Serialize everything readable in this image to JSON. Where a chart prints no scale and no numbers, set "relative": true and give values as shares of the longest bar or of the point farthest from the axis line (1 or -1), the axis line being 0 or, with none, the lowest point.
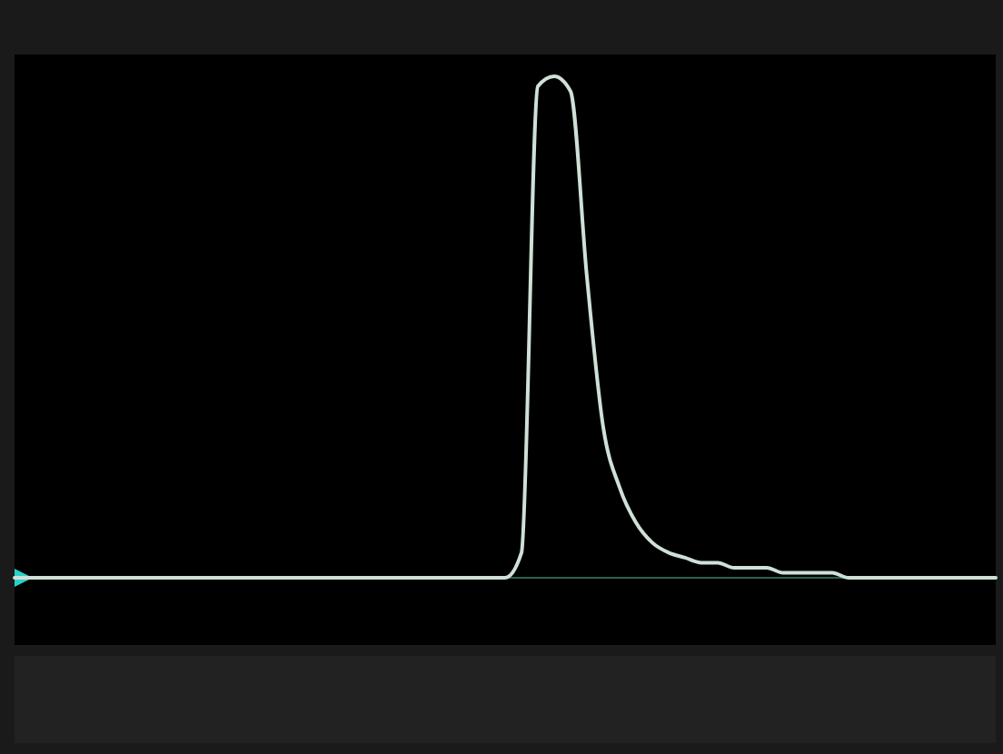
{
  "chart_data": {
    "type": "line",
    "relative": true,
    "color": "#cfe0d6",
    "categories": [
      null,
      null,
      null,
      null,
      null,
      null,
      null,
      null,
      null,
      null,
      null,
      null,
      null,
      null,
      null,
      null,
      null,
      null,
      null,
      null,
      null,
      null,
      null,
      null,
      null,
      null,
      null,
      null,
      null,
      null,
      null,
      null,
      null,
      null,
      null,
      null,
      null,
      null,
      null,
      null,
      null,
      null,
      null,
      null,
      null,
      null,
      null,
      null,
      null,
      null,
      null,
      null,
      null,
      null,
      null,
      null,
      null,
      null,
      null,
      null,
      null
    ],
    "values": [
      0,
      0,
      0,
      0,
      0,
      0,
      0,
      0,
      0,
      0,
      0,
      0,
      0,
      0,
      0,
      0,
      0,
      0,
      0,
      0,
      0,
      0,
      0,
      0,
      0,
      0,
      0,
      0,
      0,
      0,
      0,
      0.05,
      0.98,
      1,
      0.97,
      0.6,
      0.3,
      0.18,
      0.11,
      0.07,
      0.05,
      0.04,
      0.03,
      0.03,
      0.02,
      0.02,
      0.02,
      0.01,
      0.01,
      0.01,
      0.01,
      0,
      0,
      0,
      0,
      0,
      0,
      0,
      0,
      0,
      0
    ]
  }
}
